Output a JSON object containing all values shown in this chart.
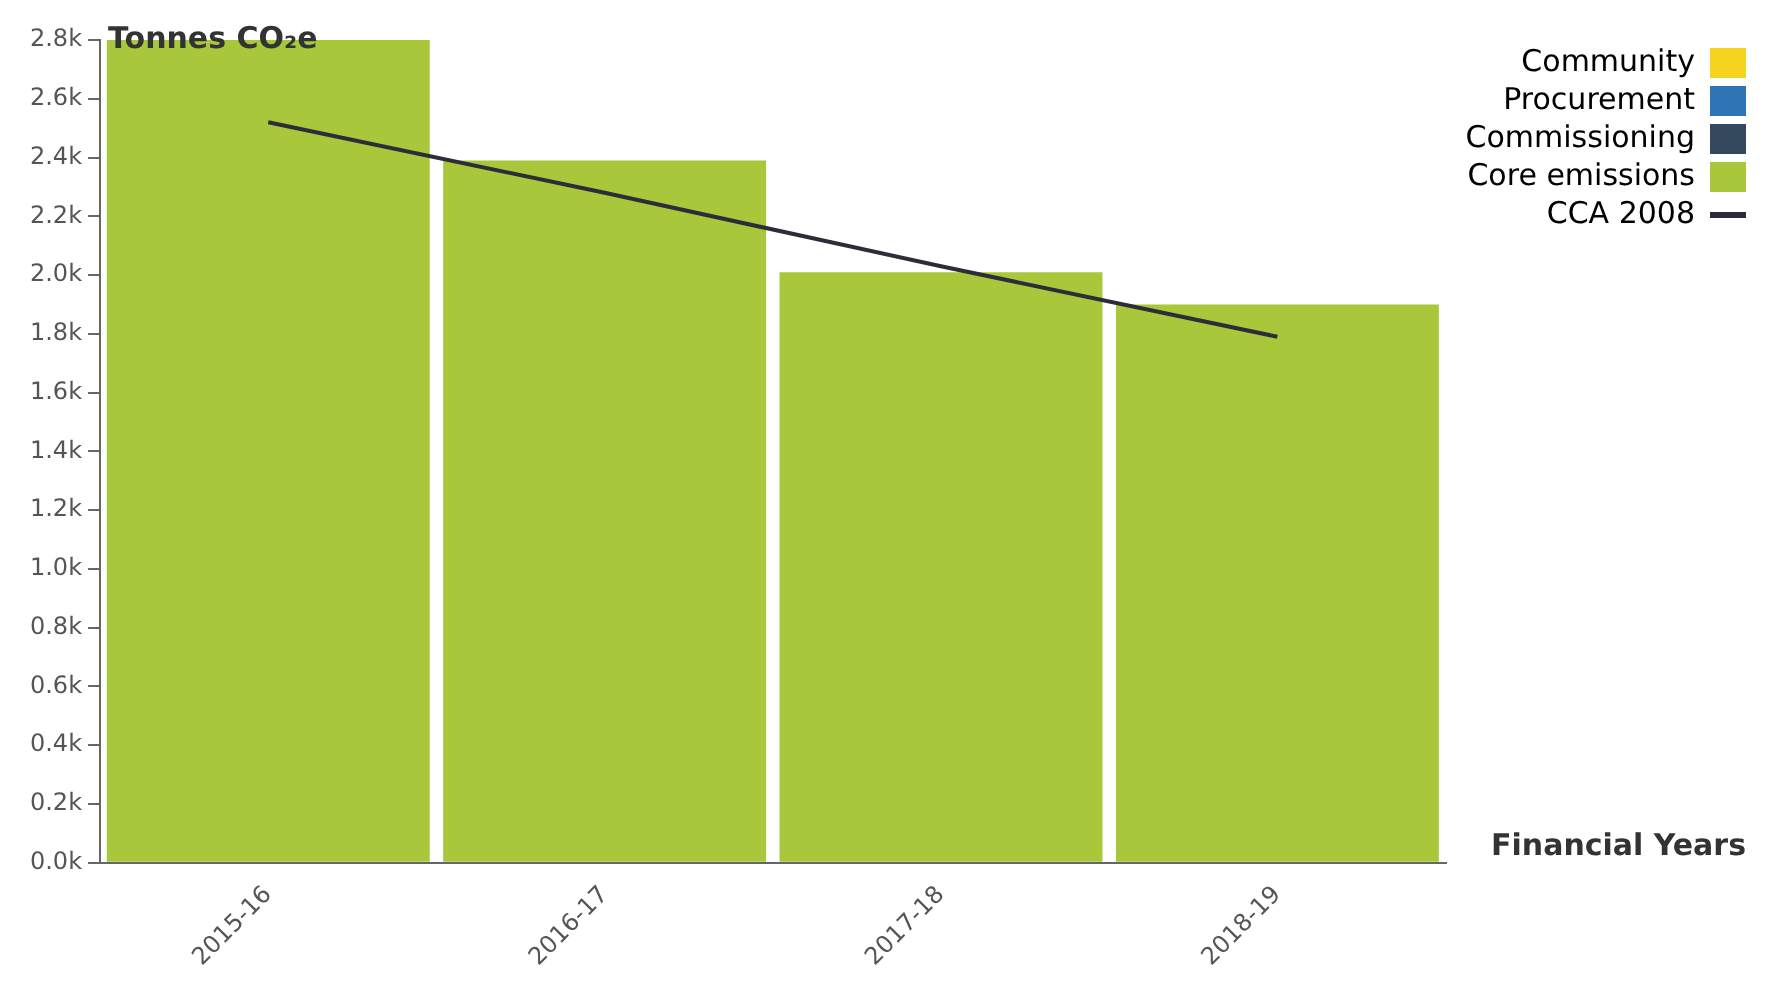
{
  "chart_data": {
    "type": "bar",
    "stacked": true,
    "ylabel": "Tonnes CO₂e",
    "xlabel": "Financial Years",
    "categories": [
      "2015-16",
      "2016-17",
      "2017-18",
      "2018-19"
    ],
    "series": [
      {
        "name": "Core emissions",
        "color": "#a8c73a",
        "values": [
          2800,
          2390,
          2010,
          1900
        ]
      },
      {
        "name": "Commissioning",
        "color": "#34495e",
        "values": [
          0,
          0,
          0,
          0
        ]
      },
      {
        "name": "Procurement",
        "color": "#2e75b6",
        "values": [
          0,
          0,
          0,
          0
        ]
      },
      {
        "name": "Community",
        "color": "#f5d31f",
        "values": [
          0,
          0,
          0,
          0
        ]
      },
      {
        "name": "CCA 2008",
        "type": "line",
        "color": "#2d2d3a",
        "values": [
          2520,
          2280,
          2030,
          1790
        ]
      }
    ],
    "ylim": [
      0,
      2800
    ],
    "yticks": [
      {
        "value": 0,
        "label": "0.0k"
      },
      {
        "value": 200,
        "label": "0.2k"
      },
      {
        "value": 400,
        "label": "0.4k"
      },
      {
        "value": 600,
        "label": "0.6k"
      },
      {
        "value": 800,
        "label": "0.8k"
      },
      {
        "value": 1000,
        "label": "1.0k"
      },
      {
        "value": 1200,
        "label": "1.2k"
      },
      {
        "value": 1400,
        "label": "1.4k"
      },
      {
        "value": 1600,
        "label": "1.6k"
      },
      {
        "value": 1800,
        "label": "1.8k"
      },
      {
        "value": 2000,
        "label": "2.0k"
      },
      {
        "value": 2200,
        "label": "2.2k"
      },
      {
        "value": 2400,
        "label": "2.4k"
      },
      {
        "value": 2600,
        "label": "2.6k"
      },
      {
        "value": 2800,
        "label": "2.8k"
      }
    ],
    "grid": false,
    "legend": "top right",
    "marker": "none",
    "line_style": "solid"
  }
}
